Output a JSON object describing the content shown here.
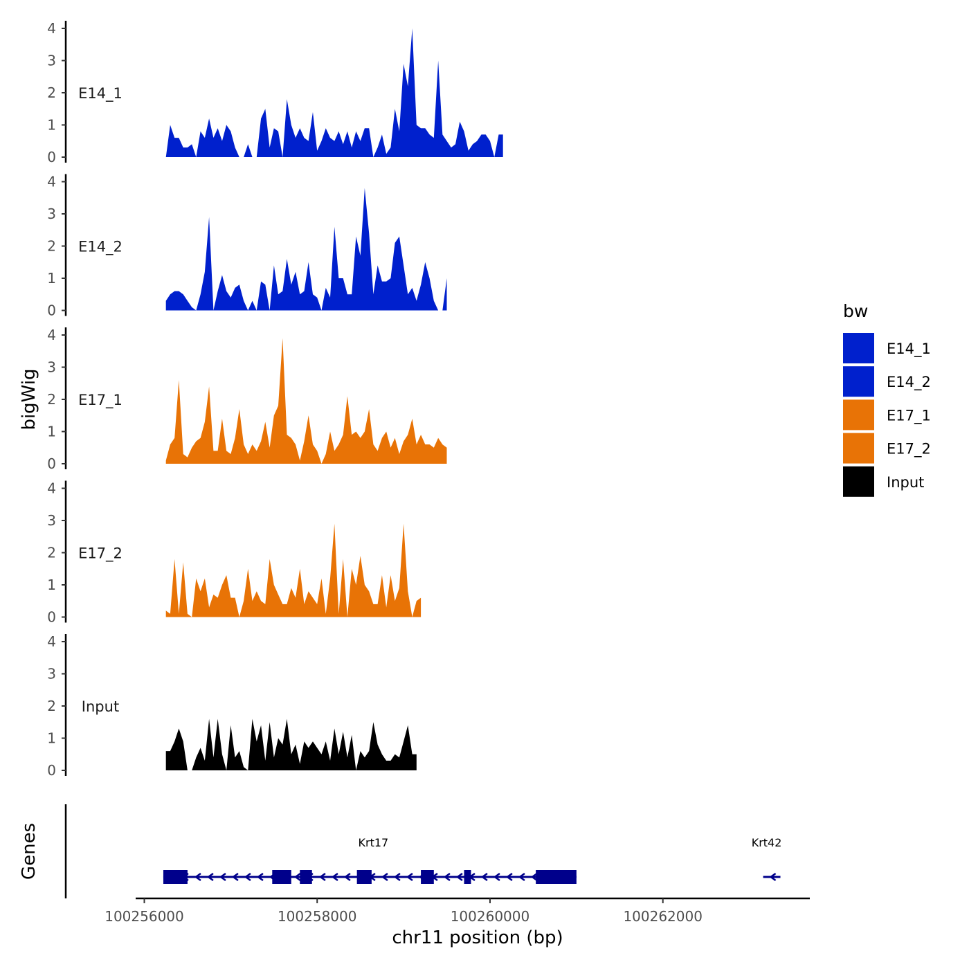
{
  "chart_data": {
    "type": "area",
    "title": "",
    "xlabel": "chr11 position (bp)",
    "ylabel": "bigWig",
    "genes_label": "Genes",
    "chromosome": "chr11",
    "xlim": [
      100255900,
      100263700
    ],
    "ylim": [
      0,
      4.2
    ],
    "x_ticks": [
      100256000,
      100258000,
      100260000,
      100262000
    ],
    "x_tick_labels": [
      "100256000",
      "100258000",
      "100260000",
      "100262000"
    ],
    "y_ticks": [
      0,
      1,
      2,
      3,
      4
    ],
    "y_tick_labels": [
      "0",
      "1",
      "2",
      "3",
      "4"
    ],
    "x_start": 100256250,
    "x_step": 50,
    "legend": {
      "title": "bw",
      "items": [
        {
          "label": "E14_1",
          "color": "#0020CD"
        },
        {
          "label": "E14_2",
          "color": "#0020CD"
        },
        {
          "label": "E17_1",
          "color": "#E87306"
        },
        {
          "label": "E17_2",
          "color": "#E87306"
        },
        {
          "label": "Input",
          "color": "#000000"
        }
      ]
    },
    "series": [
      {
        "name": "E14_1",
        "color": "#0020CD",
        "values": [
          0,
          1.0,
          0.6,
          0.6,
          0.3,
          0.3,
          0.4,
          0.0,
          0.8,
          0.6,
          1.2,
          0.6,
          0.9,
          0.5,
          1.0,
          0.8,
          0.3,
          0.0,
          0.0,
          0.4,
          0.0,
          0.0,
          1.2,
          1.5,
          0.3,
          0.9,
          0.8,
          0.0,
          1.8,
          1.0,
          0.6,
          0.9,
          0.6,
          0.5,
          1.4,
          0.2,
          0.5,
          0.9,
          0.6,
          0.5,
          0.8,
          0.4,
          0.8,
          0.3,
          0.8,
          0.5,
          0.9,
          0.9,
          0.0,
          0.3,
          0.7,
          0.1,
          0.3,
          1.5,
          0.8,
          2.9,
          2.2,
          4.0,
          1.0,
          0.9,
          0.9,
          0.7,
          0.6,
          3.0,
          0.7,
          0.5,
          0.3,
          0.4,
          1.1,
          0.8,
          0.2,
          0.4,
          0.5,
          0.7,
          0.7,
          0.5,
          0.0,
          0.7,
          0.7
        ]
      },
      {
        "name": "E14_2",
        "color": "#0020CD",
        "values": [
          0.3,
          0.5,
          0.6,
          0.6,
          0.5,
          0.3,
          0.1,
          0.0,
          0.5,
          1.2,
          2.9,
          0.0,
          0.6,
          1.1,
          0.6,
          0.4,
          0.7,
          0.8,
          0.3,
          0.0,
          0.3,
          0.0,
          0.9,
          0.8,
          0.0,
          1.4,
          0.5,
          0.6,
          1.6,
          0.8,
          1.2,
          0.5,
          0.6,
          1.5,
          0.5,
          0.4,
          0.0,
          0.7,
          0.4,
          2.6,
          1.0,
          1.0,
          0.5,
          0.5,
          2.3,
          1.7,
          3.8,
          2.4,
          0.5,
          1.4,
          0.9,
          0.9,
          1.0,
          2.1,
          2.3,
          1.4,
          0.5,
          0.7,
          0.3,
          0.8,
          1.5,
          1.0,
          0.3,
          0.0,
          0.0,
          1.0
        ]
      },
      {
        "name": "E17_1",
        "color": "#E87306",
        "values": [
          0.1,
          0.6,
          0.8,
          2.6,
          0.3,
          0.2,
          0.5,
          0.7,
          0.8,
          1.3,
          2.4,
          0.4,
          0.4,
          1.4,
          0.4,
          0.3,
          0.8,
          1.7,
          0.6,
          0.3,
          0.6,
          0.4,
          0.7,
          1.3,
          0.5,
          1.5,
          1.8,
          3.9,
          0.9,
          0.8,
          0.6,
          0.1,
          0.7,
          1.5,
          0.6,
          0.4,
          0.0,
          0.3,
          1.0,
          0.4,
          0.6,
          0.9,
          2.1,
          0.9,
          1.0,
          0.8,
          1.0,
          1.7,
          0.6,
          0.4,
          0.8,
          1.0,
          0.5,
          0.8,
          0.3,
          0.7,
          0.9,
          1.4,
          0.6,
          0.9,
          0.6,
          0.6,
          0.5,
          0.8,
          0.6,
          0.5
        ]
      },
      {
        "name": "E17_2",
        "color": "#E87306",
        "values": [
          0.2,
          0.1,
          1.8,
          0.1,
          1.7,
          0.1,
          0.0,
          1.2,
          0.8,
          1.2,
          0.3,
          0.7,
          0.6,
          1.0,
          1.3,
          0.6,
          0.6,
          0.0,
          0.5,
          1.5,
          0.5,
          0.8,
          0.5,
          0.4,
          1.8,
          1.0,
          0.7,
          0.4,
          0.4,
          0.9,
          0.6,
          1.5,
          0.4,
          0.8,
          0.6,
          0.4,
          1.2,
          0.1,
          1.2,
          2.9,
          0.1,
          1.8,
          0.0,
          1.5,
          1.0,
          1.9,
          1.0,
          0.8,
          0.4,
          0.4,
          1.3,
          0.3,
          1.3,
          0.5,
          0.9,
          2.9,
          0.8,
          0.0,
          0.5,
          0.6
        ]
      },
      {
        "name": "Input",
        "color": "#000000",
        "values": [
          0.6,
          0.6,
          0.9,
          1.3,
          0.9,
          0.0,
          0.0,
          0.4,
          0.7,
          0.3,
          1.6,
          0.4,
          1.6,
          0.5,
          0.0,
          1.4,
          0.4,
          0.6,
          0.1,
          0.0,
          1.6,
          0.9,
          1.4,
          0.3,
          1.5,
          0.4,
          1.0,
          0.8,
          1.6,
          0.5,
          0.8,
          0.2,
          0.9,
          0.7,
          0.9,
          0.7,
          0.5,
          0.9,
          0.3,
          1.3,
          0.5,
          1.2,
          0.4,
          1.1,
          0.0,
          0.6,
          0.4,
          0.6,
          1.5,
          0.8,
          0.5,
          0.3,
          0.3,
          0.5,
          0.4,
          0.9,
          1.4,
          0.5,
          0.5
        ]
      }
    ],
    "genes": [
      {
        "name": "Krt17",
        "start": 100256220,
        "end": 100261000,
        "strand": "-",
        "label_pos": 100258650,
        "exons": [
          [
            100256220,
            100256500
          ],
          [
            100257480,
            100257700
          ],
          [
            100257800,
            100257940
          ],
          [
            100258460,
            100258630
          ],
          [
            100259200,
            100259350
          ],
          [
            100259700,
            100259780
          ],
          [
            100260530,
            100261000
          ]
        ]
      },
      {
        "name": "Krt42",
        "start": 100263160,
        "end": 100263360,
        "strand": "-",
        "label_pos": 100263200,
        "exons": []
      }
    ]
  }
}
